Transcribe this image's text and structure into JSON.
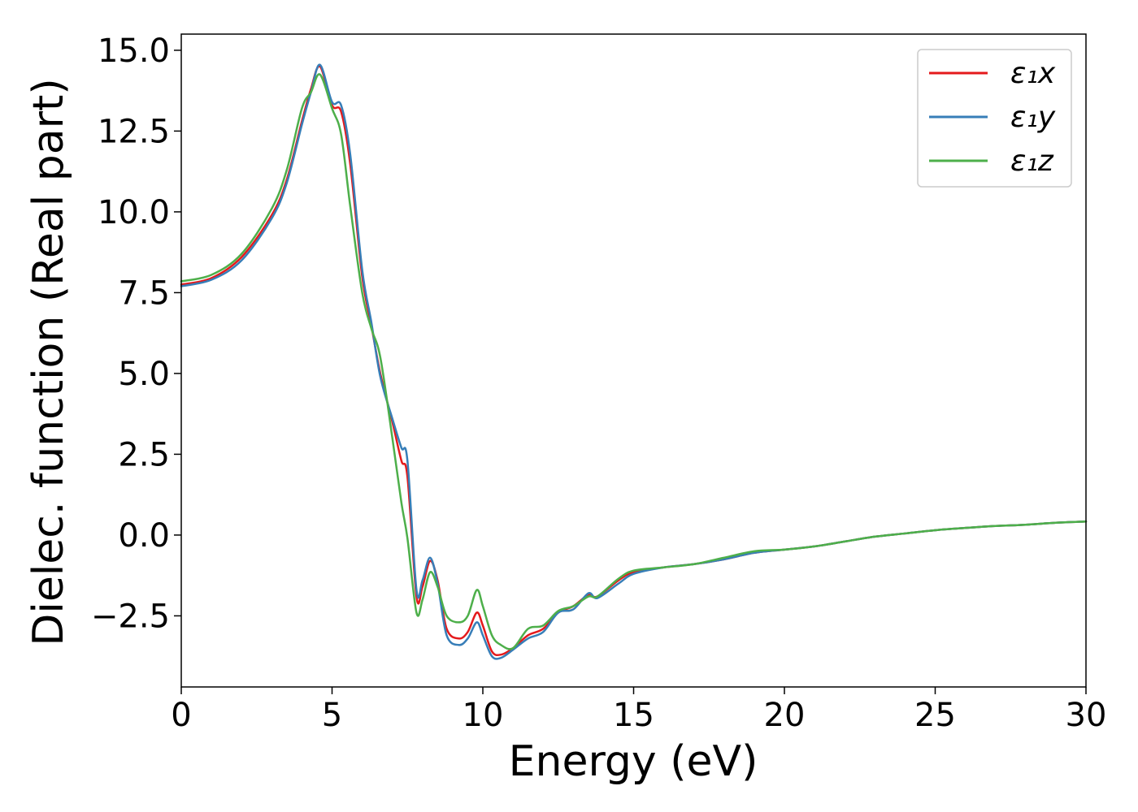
{
  "chart_data": {
    "type": "line",
    "xlabel": "Energy (eV)",
    "ylabel": "Dielec. function (Real part)",
    "xlim": [
      0,
      30
    ],
    "ylim": [
      -4.7,
      15.5
    ],
    "xticks": [
      0,
      5,
      10,
      15,
      20,
      25,
      30
    ],
    "xtick_labels": [
      "0",
      "5",
      "10",
      "15",
      "20",
      "25",
      "30"
    ],
    "yticks": [
      -2.5,
      0.0,
      2.5,
      5.0,
      7.5,
      10.0,
      12.5,
      15.0
    ],
    "ytick_labels": [
      "−2.5",
      "0.0",
      "2.5",
      "5.0",
      "7.5",
      "10.0",
      "12.5",
      "15.0"
    ],
    "grid": false,
    "legend_position": "top-right",
    "series": [
      {
        "name": "ε₁x",
        "color": "#e41a1c",
        "x": [
          0,
          1,
          2,
          3,
          3.5,
          4,
          4.3,
          4.6,
          5,
          5.3,
          5.6,
          6,
          6.3,
          6.6,
          7,
          7.3,
          7.5,
          7.8,
          8.0,
          8.25,
          8.5,
          8.8,
          9.2,
          9.5,
          9.8,
          10.0,
          10.3,
          10.6,
          11,
          11.5,
          12,
          12.5,
          13,
          13.5,
          13.8,
          14.5,
          15,
          16,
          17,
          18,
          19,
          20,
          21,
          22,
          23,
          24,
          25,
          26,
          27,
          28,
          29,
          30
        ],
        "y": [
          7.75,
          7.95,
          8.6,
          9.9,
          11.0,
          12.8,
          13.8,
          14.5,
          13.3,
          13.1,
          11.5,
          8.0,
          6.5,
          5.0,
          3.5,
          2.3,
          1.8,
          -1.9,
          -1.6,
          -0.8,
          -1.4,
          -2.9,
          -3.2,
          -3.0,
          -2.4,
          -2.8,
          -3.6,
          -3.7,
          -3.5,
          -3.1,
          -2.9,
          -2.4,
          -2.2,
          -1.85,
          -1.9,
          -1.4,
          -1.15,
          -1.0,
          -0.9,
          -0.75,
          -0.55,
          -0.45,
          -0.35,
          -0.2,
          -0.05,
          0.05,
          0.15,
          0.22,
          0.28,
          0.32,
          0.38,
          0.42
        ]
      },
      {
        "name": "ε₁y",
        "color": "#377eb8",
        "x": [
          0,
          1,
          2,
          3,
          3.5,
          4,
          4.3,
          4.6,
          5,
          5.3,
          5.6,
          6,
          6.3,
          6.6,
          7,
          7.3,
          7.5,
          7.8,
          8.0,
          8.25,
          8.5,
          8.8,
          9.2,
          9.5,
          9.8,
          10.0,
          10.3,
          10.6,
          11,
          11.5,
          12,
          12.5,
          13,
          13.5,
          13.8,
          14.5,
          15,
          16,
          17,
          18,
          19,
          20,
          21,
          22,
          23,
          24,
          25,
          26,
          27,
          28,
          29,
          30
        ],
        "y": [
          7.7,
          7.9,
          8.5,
          9.8,
          10.9,
          12.7,
          13.7,
          14.55,
          13.4,
          13.3,
          11.8,
          8.2,
          6.6,
          4.9,
          3.6,
          2.7,
          2.3,
          -1.7,
          -1.4,
          -0.7,
          -1.5,
          -3.1,
          -3.4,
          -3.2,
          -2.7,
          -3.1,
          -3.75,
          -3.8,
          -3.55,
          -3.2,
          -3.0,
          -2.4,
          -2.3,
          -1.8,
          -1.95,
          -1.5,
          -1.2,
          -1.0,
          -0.9,
          -0.75,
          -0.55,
          -0.45,
          -0.35,
          -0.2,
          -0.05,
          0.05,
          0.15,
          0.22,
          0.28,
          0.32,
          0.38,
          0.42
        ]
      },
      {
        "name": "ε₁z",
        "color": "#4daf4a",
        "x": [
          0,
          1,
          2,
          3,
          3.5,
          4,
          4.3,
          4.6,
          5,
          5.3,
          5.6,
          6,
          6.3,
          6.6,
          7,
          7.3,
          7.5,
          7.8,
          8.0,
          8.25,
          8.5,
          8.8,
          9.2,
          9.5,
          9.8,
          10.0,
          10.3,
          10.6,
          11,
          11.5,
          12,
          12.5,
          13,
          13.5,
          13.8,
          14.5,
          15,
          16,
          17,
          18,
          19,
          20,
          21,
          22,
          23,
          24,
          25,
          26,
          27,
          28,
          29,
          30
        ],
        "y": [
          7.85,
          8.05,
          8.7,
          10.1,
          11.3,
          13.2,
          13.7,
          14.25,
          13.2,
          12.4,
          10.2,
          7.5,
          6.4,
          5.5,
          3.0,
          1.0,
          -0.1,
          -2.4,
          -2.0,
          -1.15,
          -1.6,
          -2.5,
          -2.7,
          -2.5,
          -1.7,
          -2.2,
          -3.1,
          -3.4,
          -3.5,
          -2.9,
          -2.8,
          -2.35,
          -2.2,
          -1.9,
          -1.9,
          -1.35,
          -1.1,
          -1.0,
          -0.9,
          -0.7,
          -0.5,
          -0.45,
          -0.35,
          -0.2,
          -0.05,
          0.05,
          0.15,
          0.22,
          0.28,
          0.32,
          0.38,
          0.42
        ]
      }
    ]
  }
}
